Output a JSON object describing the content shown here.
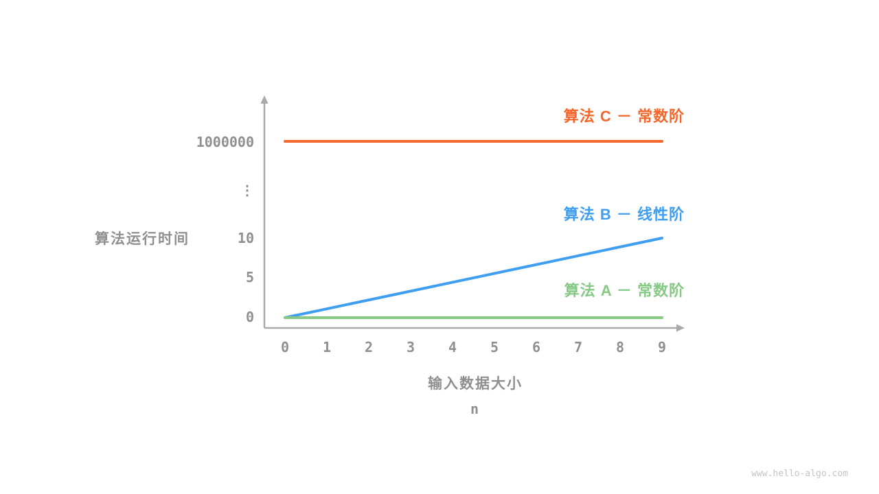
{
  "colors": {
    "axis": "#a9a9a9",
    "tick_text": "#8f8f8f",
    "label_text": "#8f8f8f",
    "watermark_text": "#c4c4c4",
    "algo_a_green": "#85c985",
    "algo_b_blue": "#3f9ef0",
    "algo_c_orange": "#f4662a"
  },
  "chart_data": {
    "type": "line",
    "title": "",
    "xlabel": "输入数据大小",
    "xlabel_sub": "n",
    "ylabel": "算法运行时间",
    "x_ticks": [
      "0",
      "1",
      "2",
      "3",
      "4",
      "5",
      "6",
      "7",
      "8",
      "9"
    ],
    "y_ticks": [
      "1000000",
      "⋮",
      "10",
      "5",
      "0"
    ],
    "y_axis_note": "broken axis: 0, 5, 10, … , 1000000",
    "grid": false,
    "legend_position": "right of each line",
    "series": [
      {
        "name": "算法 C － 常数阶",
        "kind": "constant",
        "value": 1000000,
        "x_range": [
          0,
          9
        ],
        "color": "#f4662a"
      },
      {
        "name": "算法 B － 线性阶",
        "kind": "linear",
        "x": [
          0,
          9
        ],
        "y": [
          0,
          10
        ],
        "color": "#3f9ef0"
      },
      {
        "name": "算法 A － 常数阶",
        "kind": "constant",
        "value": 0,
        "x_range": [
          0,
          9
        ],
        "color": "#85c985"
      }
    ]
  },
  "watermark": "www.hello-algo.com"
}
